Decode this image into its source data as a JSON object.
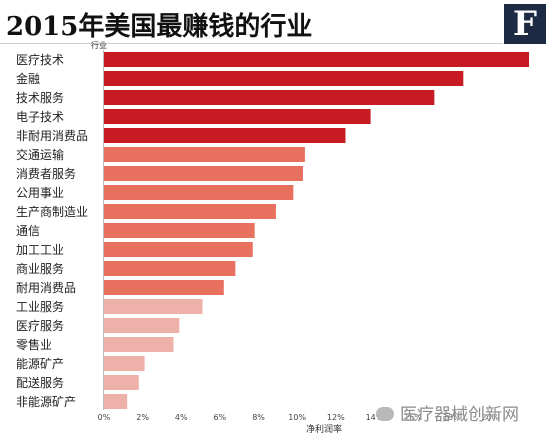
{
  "header": {
    "title": "2015年美国最赚钱的行业"
  },
  "logo": {
    "letter": "F"
  },
  "watermark": {
    "text": "医疗器械创新网"
  },
  "chart_data": {
    "type": "bar",
    "orientation": "horizontal",
    "title": "2015年美国最赚钱的行业",
    "category_axis_label": "行业",
    "xlabel": "净利润率",
    "xlim": [
      0,
      22
    ],
    "xticks": [
      "0%",
      "2%",
      "4%",
      "6%",
      "8%",
      "10%",
      "12%",
      "14%",
      "16%",
      "18%",
      "20%"
    ],
    "grid": false,
    "categories": [
      "医疗技术",
      "金融",
      "技术服务",
      "电子技术",
      "非耐用消费品",
      "交通运输",
      "消费者服务",
      "公用事业",
      "生产商制造业",
      "通信",
      "加工工业",
      "商业服务",
      "耐用消费品",
      "工业服务",
      "医疗服务",
      "零售业",
      "能源矿产",
      "配送服务",
      "非能源矿产"
    ],
    "values": [
      22.0,
      18.6,
      17.1,
      13.8,
      12.5,
      10.4,
      10.3,
      9.8,
      8.9,
      7.8,
      7.7,
      6.8,
      6.2,
      5.1,
      3.9,
      3.6,
      2.1,
      1.8,
      1.2
    ],
    "colors": [
      "#c71a22",
      "#c71a22",
      "#c71a22",
      "#c71a22",
      "#c71a22",
      "#e8705f",
      "#e8705f",
      "#e8705f",
      "#e8705f",
      "#e8705f",
      "#e8705f",
      "#e8705f",
      "#e8705f",
      "#eeb1aa",
      "#eeb1aa",
      "#eeb1aa",
      "#eeb1aa",
      "#eeb1aa",
      "#eeb1aa"
    ]
  }
}
